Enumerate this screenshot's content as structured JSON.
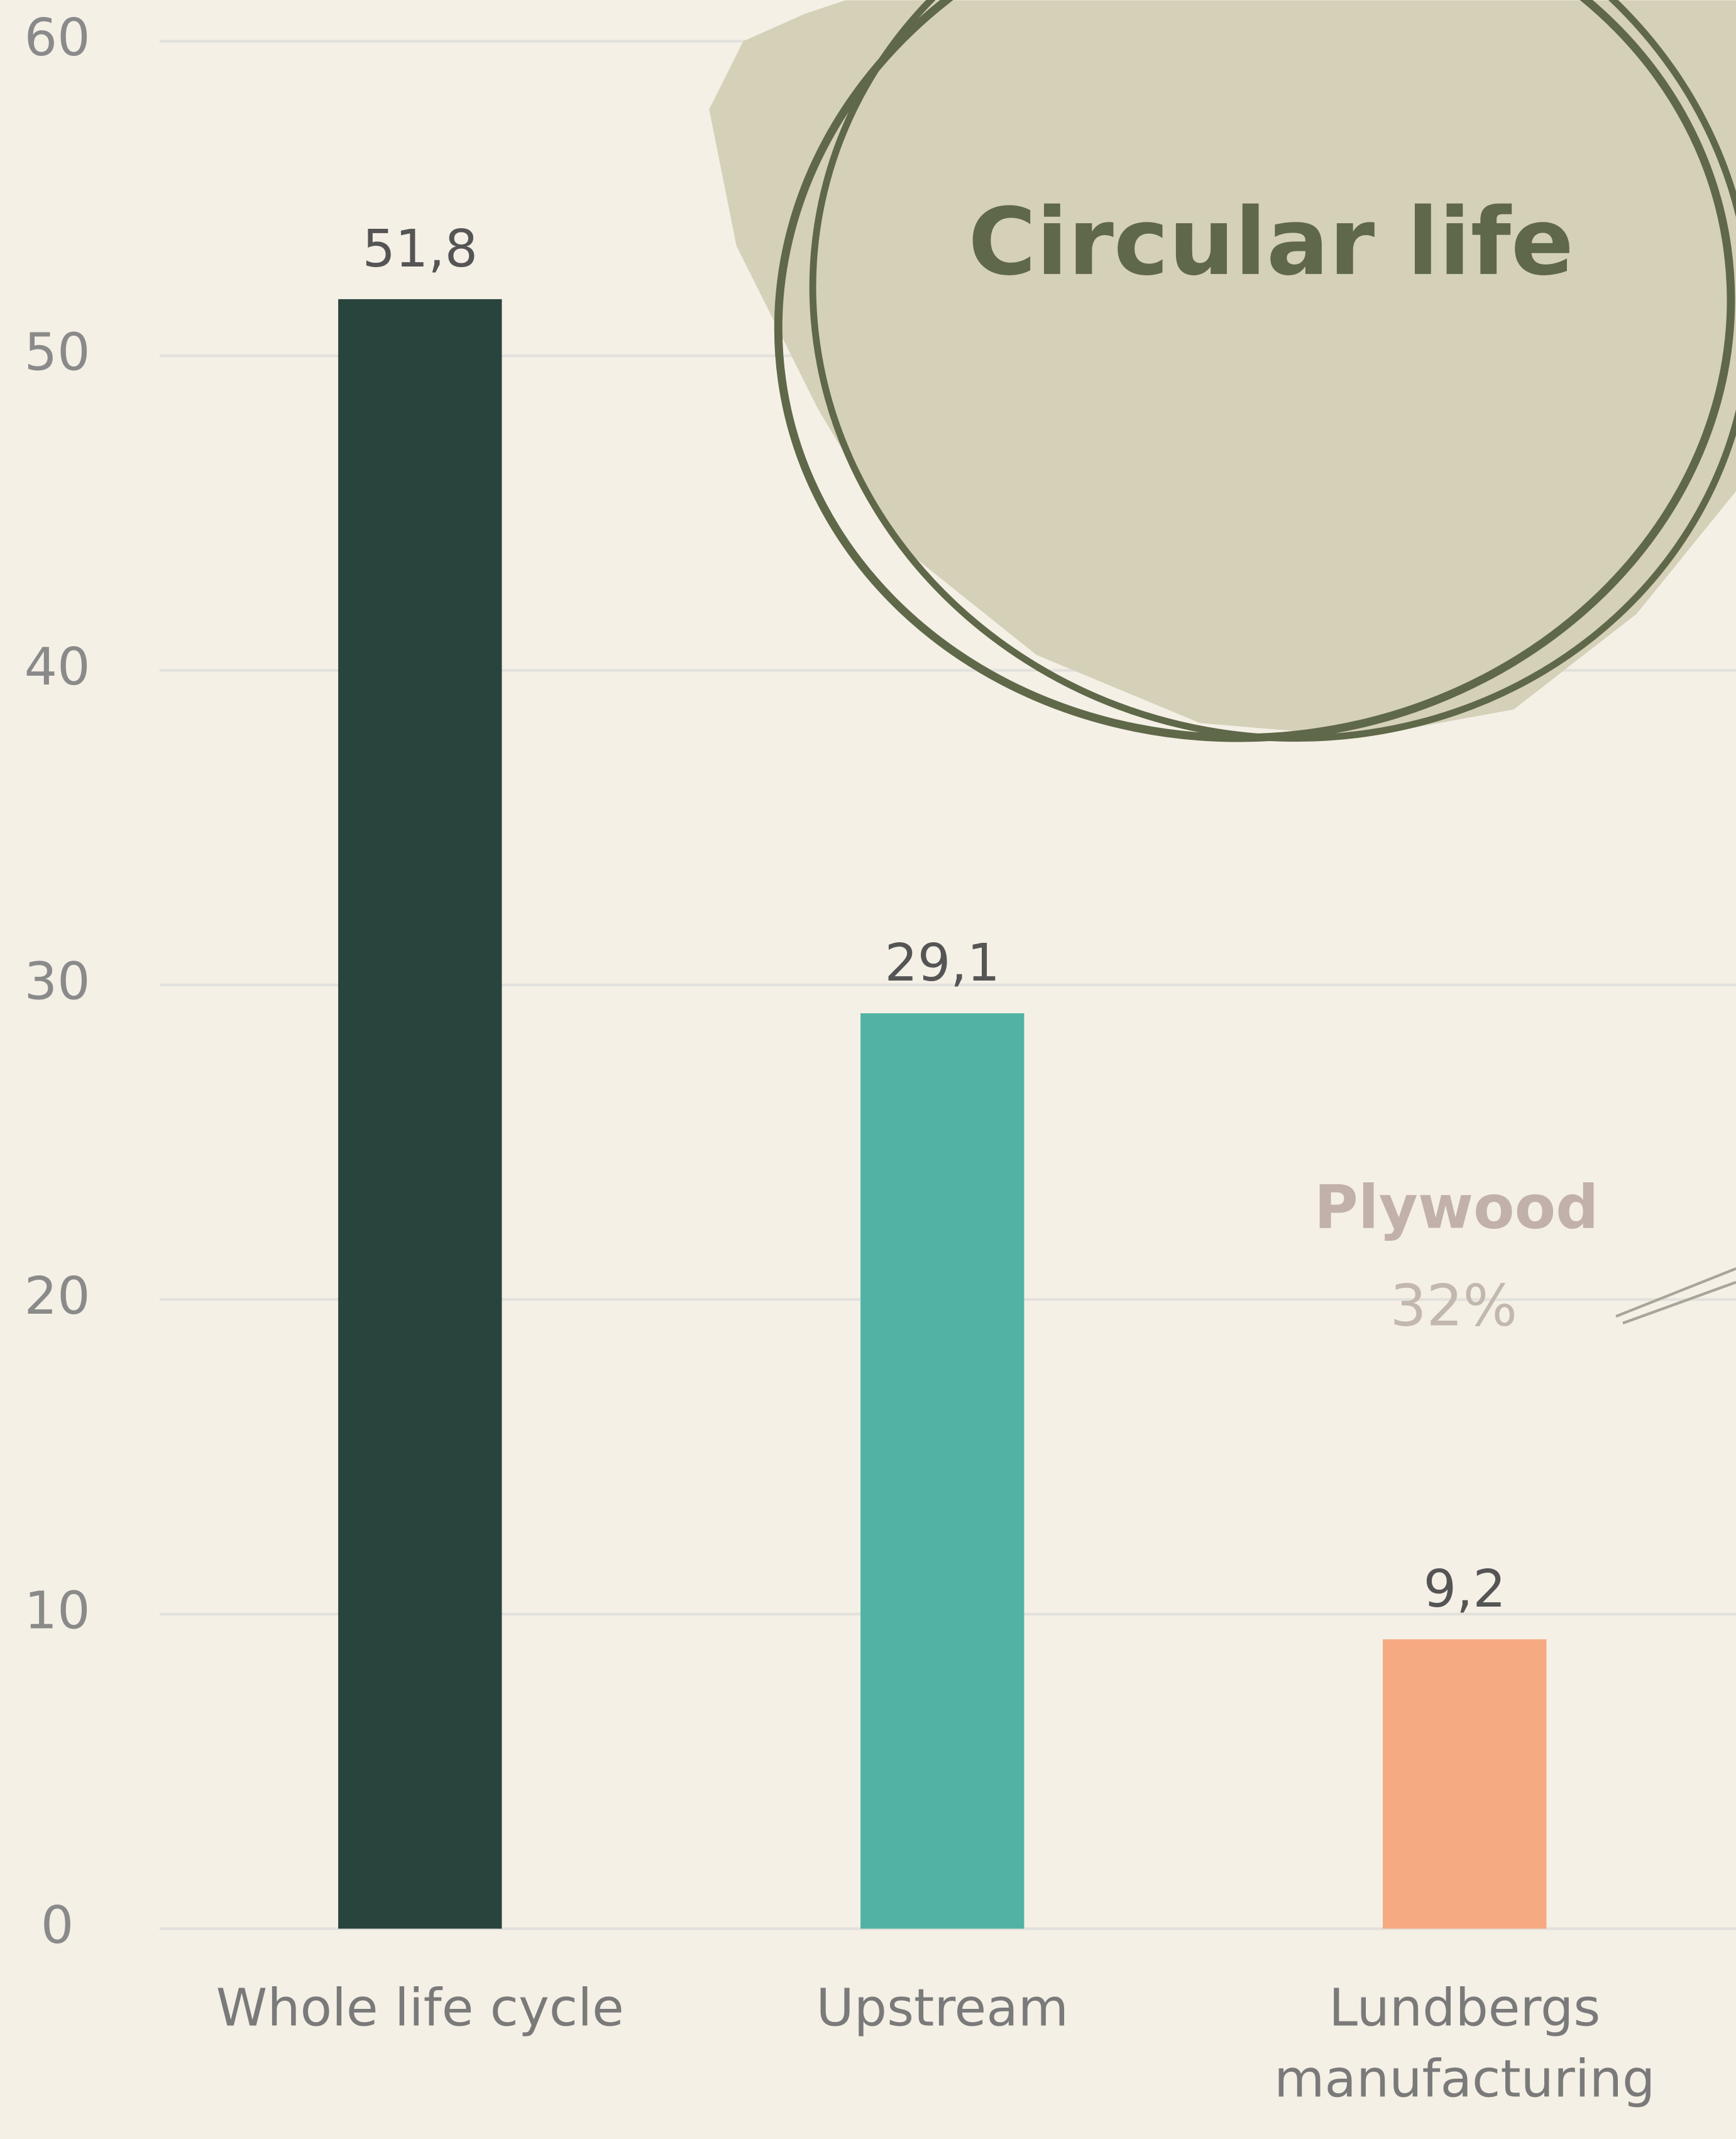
{
  "chart_data": {
    "type": "bar",
    "categories": [
      "Whole life cycle",
      "Upstream",
      "Lundbergs manufacturing"
    ],
    "values": [
      51.8,
      29.1,
      9.2
    ],
    "value_labels": [
      "51,8",
      "29,1",
      "9,2"
    ],
    "colors": [
      "#29443d",
      "#52b3a5",
      "#f5aa82"
    ],
    "ylim": [
      0,
      60
    ],
    "yticks": [
      0,
      10,
      20,
      30,
      40,
      50,
      60
    ],
    "grid": true,
    "annotations": [
      "Circular life",
      "Plywood",
      "32%"
    ]
  }
}
